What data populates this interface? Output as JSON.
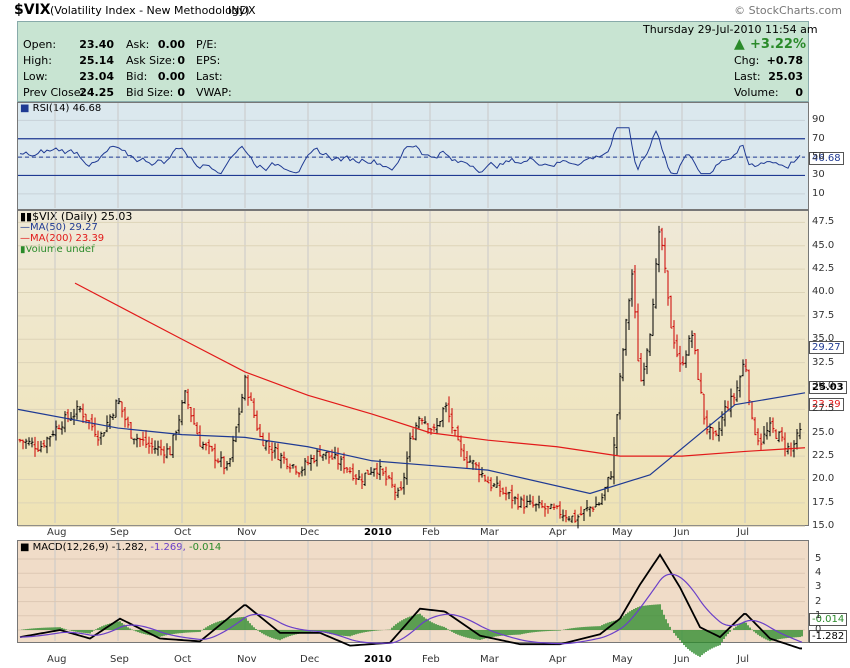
{
  "header": {
    "symbol": "$VIX",
    "name": "(Volatility Index - New Methodology)",
    "exchange": "INDX",
    "watermark": "© StockCharts.com"
  },
  "quote": {
    "date_line": "Thursday  29-Jul-2010  11:54 am",
    "change_pct": "+3.22%",
    "labels": {
      "open": "Open:",
      "high": "High:",
      "low": "Low:",
      "prev": "Prev Close:",
      "ask": "Ask:",
      "asksize": "Ask Size:",
      "bid": "Bid:",
      "bidsize": "Bid Size:",
      "pe": "P/E:",
      "eps": "EPS:",
      "last2": "Last:",
      "vwap": "VWAP:",
      "chg": "Chg:",
      "last": "Last:",
      "volume": "Volume:"
    },
    "values": {
      "open": "23.40",
      "high": "25.14",
      "low": "23.04",
      "prev": "24.25",
      "ask": "0.00",
      "asksize": "0",
      "bid": "0.00",
      "bidsize": "0",
      "chg": "+0.78",
      "last": "25.03",
      "volume": "0"
    },
    "up_color": "#2a8a2a"
  },
  "rsi": {
    "legend": "RSI(14) 46.68",
    "last_tag": "46.68",
    "ticks": [
      "90",
      "70",
      "50",
      "30",
      "10"
    ]
  },
  "price": {
    "legend_main": "$VIX (Daily) 25.03",
    "legend_ma50": "MA(50) 29.27",
    "legend_ma200": "MA(200) 23.39",
    "legend_vol": "Volume undef",
    "tag_last": "25.03",
    "tag_ma50": "29.27",
    "tag_ma200": "23.39",
    "ticks": [
      "47.5",
      "45.0",
      "42.5",
      "40.0",
      "37.5",
      "35.0",
      "32.5",
      "30.0",
      "27.5",
      "25.0",
      "22.5",
      "20.0",
      "17.5",
      "15.0"
    ],
    "colors": {
      "ma50": "#1f3a93",
      "ma200": "#e21a1a",
      "up": "#000000",
      "down": "#cc0000"
    }
  },
  "macd": {
    "legend_main": "MACD(12,26,9) -1.282,",
    "legend_sig": "-1.269,",
    "legend_hist": "-0.014",
    "tag_hist": "-0.014",
    "tag_macd": "-1.282",
    "ticks": [
      "5",
      "4",
      "3",
      "2",
      "1",
      "0"
    ]
  },
  "months": [
    "Aug",
    "Sep",
    "Oct",
    "Nov",
    "Dec",
    "2010",
    "Feb",
    "Mar",
    "Apr",
    "May",
    "Jun",
    "Jul"
  ],
  "chart_data": {
    "type": "line",
    "title": "$VIX (Volatility Index - New Methodology)",
    "x": [
      "Aug",
      "Sep",
      "Oct",
      "Nov",
      "Dec",
      "2010",
      "Feb",
      "Mar",
      "Apr",
      "May",
      "Jun",
      "Jul"
    ],
    "ylim": [
      15.0,
      48.0
    ],
    "series": [
      {
        "name": "$VIX (Daily)",
        "values": [
          24.5,
          26.5,
          24.0,
          28.0,
          21.5,
          21.0,
          26.5,
          19.5,
          16.5,
          31.0,
          30.0,
          25.0
        ]
      },
      {
        "name": "MA(50)",
        "values": [
          27.5,
          25.5,
          24.8,
          24.5,
          23.5,
          22.0,
          21.5,
          21.0,
          18.5,
          20.5,
          28.0,
          29.27
        ]
      },
      {
        "name": "MA(200)",
        "values": [
          41.0,
          35.0,
          31.5,
          29.0,
          27.0,
          25.0,
          24.2,
          23.5,
          22.5,
          22.5,
          23.0,
          23.39
        ]
      }
    ],
    "rsi": {
      "name": "RSI(14)",
      "last": 46.68,
      "levels": [
        70,
        50,
        30
      ]
    },
    "macd": {
      "name": "MACD(12,26,9)",
      "macd": -1.282,
      "signal": -1.269,
      "histogram": -0.014,
      "yticks": [
        5,
        4,
        3,
        2,
        1,
        0
      ]
    }
  }
}
